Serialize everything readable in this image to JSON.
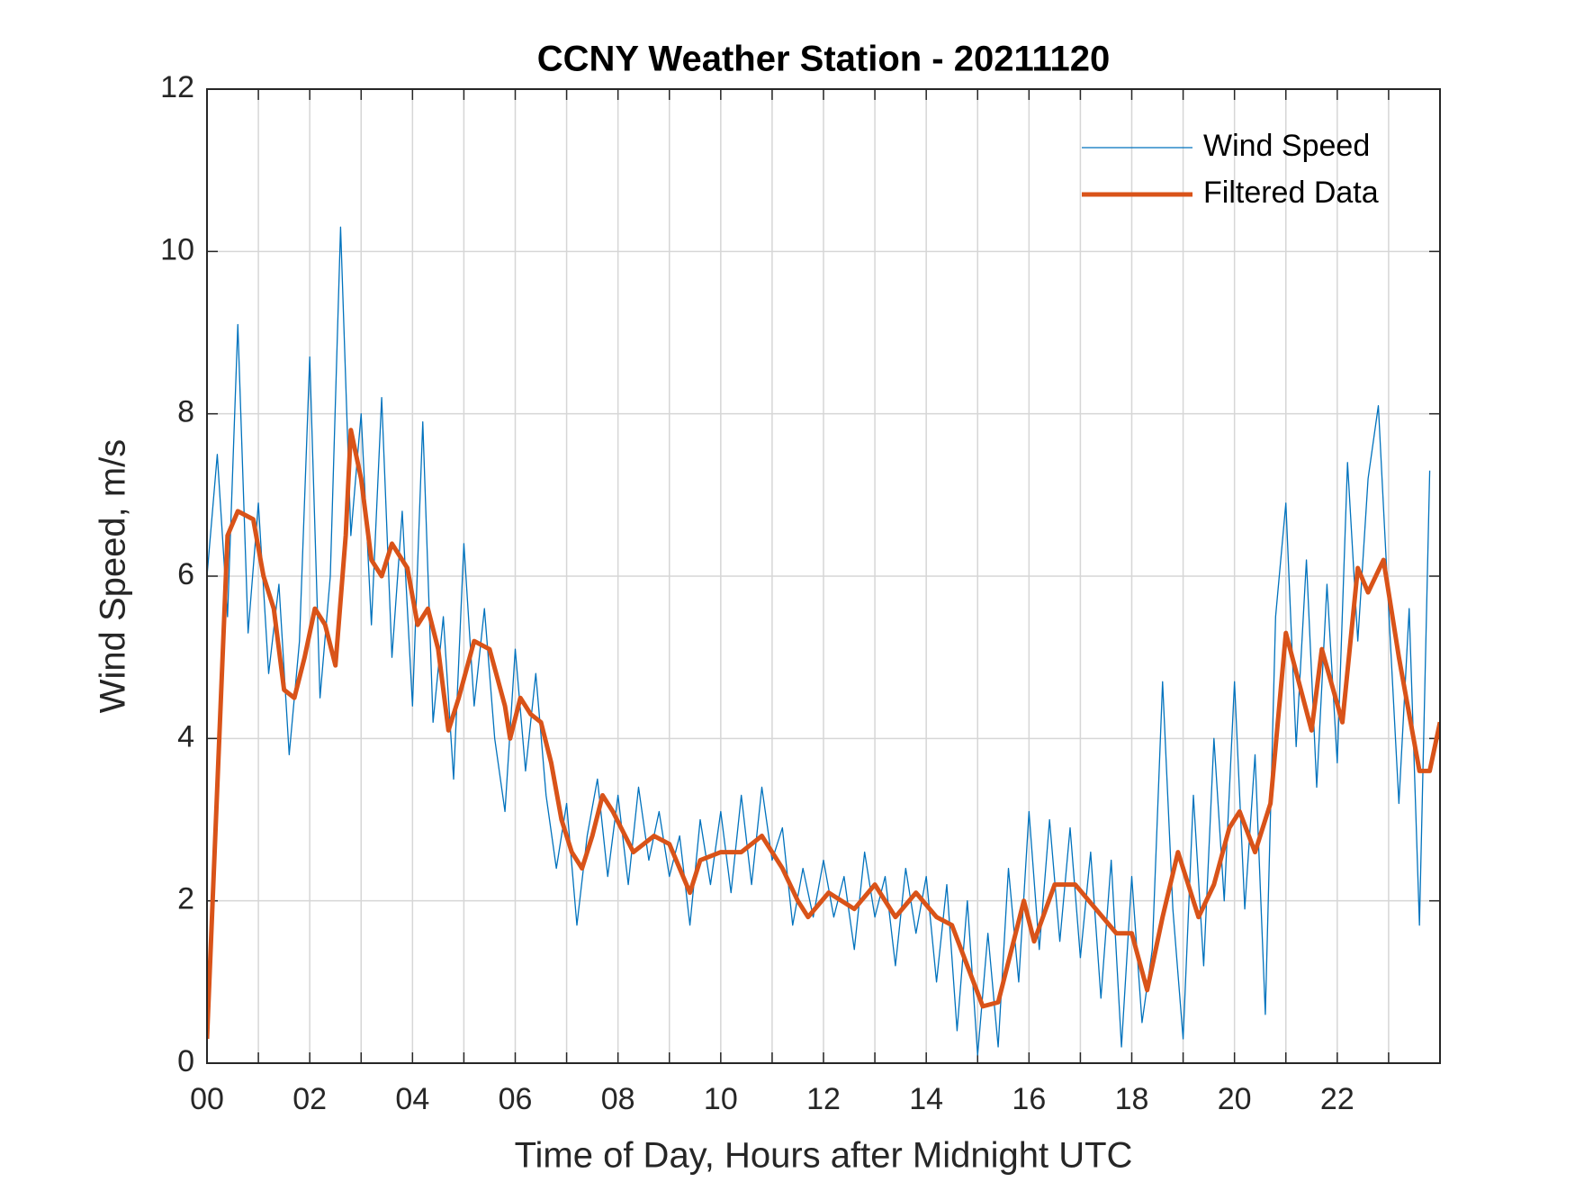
{
  "chart_data": {
    "type": "line",
    "title": "CCNY Weather Station - 20211120",
    "x_label": "Time of Day, Hours after Midnight UTC",
    "y_label": "Wind Speed, m/s",
    "xlim": [
      0,
      24
    ],
    "ylim": [
      0,
      12
    ],
    "xticks": [
      {
        "value": 0,
        "label": "00"
      },
      {
        "value": 2,
        "label": "02"
      },
      {
        "value": 4,
        "label": "04"
      },
      {
        "value": 6,
        "label": "06"
      },
      {
        "value": 8,
        "label": "08"
      },
      {
        "value": 10,
        "label": "10"
      },
      {
        "value": 12,
        "label": "12"
      },
      {
        "value": 14,
        "label": "14"
      },
      {
        "value": 16,
        "label": "16"
      },
      {
        "value": 18,
        "label": "18"
      },
      {
        "value": 20,
        "label": "20"
      },
      {
        "value": 22,
        "label": "22"
      }
    ],
    "xminorticks": [
      1,
      3,
      5,
      7,
      9,
      11,
      13,
      15,
      17,
      19,
      21,
      23
    ],
    "yticks": [
      0,
      2,
      4,
      6,
      8,
      10,
      12
    ],
    "grid": true,
    "legend_position": "upper-right",
    "series": [
      {
        "name": "Wind Speed",
        "color": "#0072bd",
        "width": 1.3,
        "x": [
          0,
          0.2,
          0.4,
          0.6,
          0.8,
          1,
          1.2,
          1.4,
          1.6,
          1.8,
          2,
          2.2,
          2.4,
          2.6,
          2.8,
          3,
          3.2,
          3.4,
          3.6,
          3.8,
          4,
          4.2,
          4.4,
          4.6,
          4.8,
          5,
          5.2,
          5.4,
          5.6,
          5.8,
          6,
          6.2,
          6.4,
          6.6,
          6.8,
          7,
          7.2,
          7.4,
          7.6,
          7.8,
          8,
          8.2,
          8.4,
          8.6,
          8.8,
          9,
          9.2,
          9.4,
          9.6,
          9.8,
          10,
          10.2,
          10.4,
          10.6,
          10.8,
          11,
          11.2,
          11.4,
          11.6,
          11.8,
          12,
          12.2,
          12.4,
          12.6,
          12.8,
          13,
          13.2,
          13.4,
          13.6,
          13.8,
          14,
          14.2,
          14.4,
          14.6,
          14.8,
          15,
          15.2,
          15.4,
          15.6,
          15.8,
          16,
          16.2,
          16.4,
          16.6,
          16.8,
          17,
          17.2,
          17.4,
          17.6,
          17.8,
          18,
          18.2,
          18.4,
          18.6,
          18.8,
          19,
          19.2,
          19.4,
          19.6,
          19.8,
          20,
          20.2,
          20.4,
          20.6,
          20.8,
          21,
          21.2,
          21.4,
          21.6,
          21.8,
          22,
          22.2,
          22.4,
          22.6,
          22.8,
          23,
          23.2,
          23.4,
          23.6,
          23.8
        ],
        "values": [
          6.0,
          7.5,
          5.5,
          9.1,
          5.3,
          6.9,
          4.8,
          5.9,
          3.8,
          5.2,
          8.7,
          4.5,
          6.0,
          10.3,
          6.5,
          8.0,
          5.4,
          8.2,
          5.0,
          6.8,
          4.4,
          7.9,
          4.2,
          5.5,
          3.5,
          6.4,
          4.4,
          5.6,
          4.0,
          3.1,
          5.1,
          3.6,
          4.8,
          3.3,
          2.4,
          3.2,
          1.7,
          2.8,
          3.5,
          2.3,
          3.3,
          2.2,
          3.4,
          2.5,
          3.1,
          2.3,
          2.8,
          1.7,
          3.0,
          2.2,
          3.1,
          2.1,
          3.3,
          2.2,
          3.4,
          2.5,
          2.9,
          1.7,
          2.4,
          1.8,
          2.5,
          1.8,
          2.3,
          1.4,
          2.6,
          1.8,
          2.3,
          1.2,
          2.4,
          1.6,
          2.3,
          1.0,
          2.2,
          0.4,
          2.0,
          0.1,
          1.6,
          0.2,
          2.4,
          1.0,
          3.1,
          1.4,
          3.0,
          1.5,
          2.9,
          1.3,
          2.6,
          0.8,
          2.5,
          0.2,
          2.3,
          0.5,
          1.4,
          4.7,
          1.9,
          0.3,
          3.3,
          1.2,
          4.0,
          2.0,
          4.7,
          1.9,
          3.8,
          0.6,
          5.5,
          6.9,
          3.9,
          6.2,
          3.4,
          5.9,
          3.7,
          7.4,
          5.2,
          7.2,
          8.1,
          5.6,
          3.2,
          5.6,
          1.7,
          7.3
        ]
      },
      {
        "name": "Filtered Data",
        "color": "#d95319",
        "width": 5,
        "x": [
          0,
          0.4,
          0.6,
          0.9,
          1.1,
          1.3,
          1.5,
          1.7,
          1.9,
          2.1,
          2.3,
          2.5,
          2.7,
          2.8,
          3.0,
          3.2,
          3.4,
          3.6,
          3.9,
          4.1,
          4.3,
          4.5,
          4.7,
          4.9,
          5.2,
          5.5,
          5.8,
          5.9,
          6.1,
          6.3,
          6.5,
          6.7,
          6.9,
          7.1,
          7.3,
          7.5,
          7.7,
          7.9,
          8.3,
          8.7,
          9.0,
          9.2,
          9.4,
          9.6,
          10,
          10.4,
          10.8,
          11.2,
          11.5,
          11.7,
          12.1,
          12.6,
          13.0,
          13.4,
          13.8,
          14.2,
          14.5,
          14.8,
          15.1,
          15.4,
          15.7,
          15.9,
          16.1,
          16.5,
          16.9,
          17.3,
          17.7,
          18.0,
          18.3,
          18.6,
          18.9,
          19.3,
          19.6,
          19.9,
          20.1,
          20.4,
          20.7,
          21.0,
          21.5,
          21.7,
          22.1,
          22.4,
          22.6,
          22.9,
          23.2,
          23.6,
          23.8,
          24
        ],
        "values": [
          0.3,
          6.5,
          6.8,
          6.7,
          6.0,
          5.6,
          4.6,
          4.5,
          5.0,
          5.6,
          5.4,
          4.9,
          6.5,
          7.8,
          7.2,
          6.2,
          6.0,
          6.4,
          6.1,
          5.4,
          5.6,
          5.1,
          4.1,
          4.5,
          5.2,
          5.1,
          4.4,
          4.0,
          4.5,
          4.3,
          4.2,
          3.7,
          3.0,
          2.6,
          2.4,
          2.8,
          3.3,
          3.1,
          2.6,
          2.8,
          2.7,
          2.4,
          2.1,
          2.5,
          2.6,
          2.6,
          2.8,
          2.4,
          2.0,
          1.8,
          2.1,
          1.9,
          2.2,
          1.8,
          2.1,
          1.8,
          1.7,
          1.2,
          0.7,
          0.75,
          1.5,
          2.0,
          1.5,
          2.2,
          2.2,
          1.9,
          1.6,
          1.6,
          0.9,
          1.8,
          2.6,
          1.8,
          2.2,
          2.9,
          3.1,
          2.6,
          3.2,
          5.3,
          4.1,
          5.1,
          4.2,
          6.1,
          5.8,
          6.2,
          5.0,
          3.6,
          3.6,
          4.2
        ]
      }
    ]
  }
}
